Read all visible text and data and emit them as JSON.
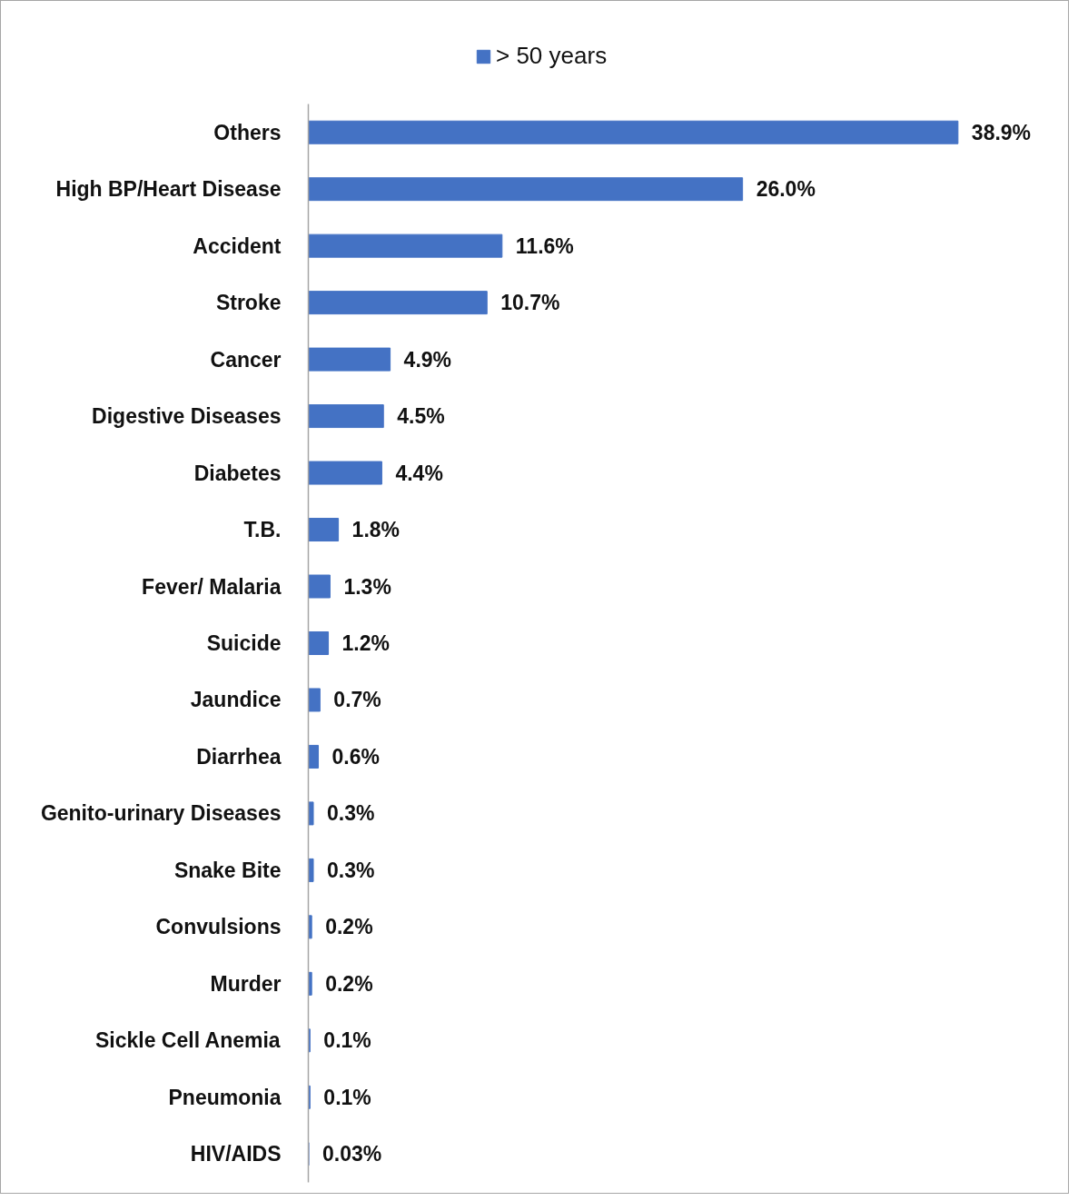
{
  "chart_data": {
    "type": "bar",
    "orientation": "horizontal",
    "legend": "top",
    "categories": [
      "Others",
      "High BP/Heart Disease",
      "Accident",
      "Stroke",
      "Cancer",
      "Digestive Diseases",
      "Diabetes",
      "T.B.",
      "Fever/ Malaria",
      "Suicide",
      "Jaundice",
      "Diarrhea",
      "Genito-urinary Diseases",
      "Snake Bite",
      "Convulsions",
      "Murder",
      "Sickle Cell Anemia",
      "Pneumonia",
      "HIV/AIDS"
    ],
    "series": [
      {
        "name": "> 50 years",
        "color": "#4472c4",
        "values": [
          38.9,
          26.0,
          11.6,
          10.7,
          4.9,
          4.5,
          4.4,
          1.8,
          1.3,
          1.2,
          0.7,
          0.6,
          0.3,
          0.3,
          0.2,
          0.2,
          0.1,
          0.1,
          0.03
        ],
        "value_labels": [
          "38.9%",
          "26.0%",
          "11.6%",
          "10.7%",
          "4.9%",
          "4.5%",
          "4.4%",
          "1.8%",
          "1.3%",
          "1.2%",
          "0.7%",
          "0.6%",
          "0.3%",
          "0.3%",
          "0.2%",
          "0.2%",
          "0.1%",
          "0.1%",
          "0.03%"
        ]
      }
    ]
  }
}
